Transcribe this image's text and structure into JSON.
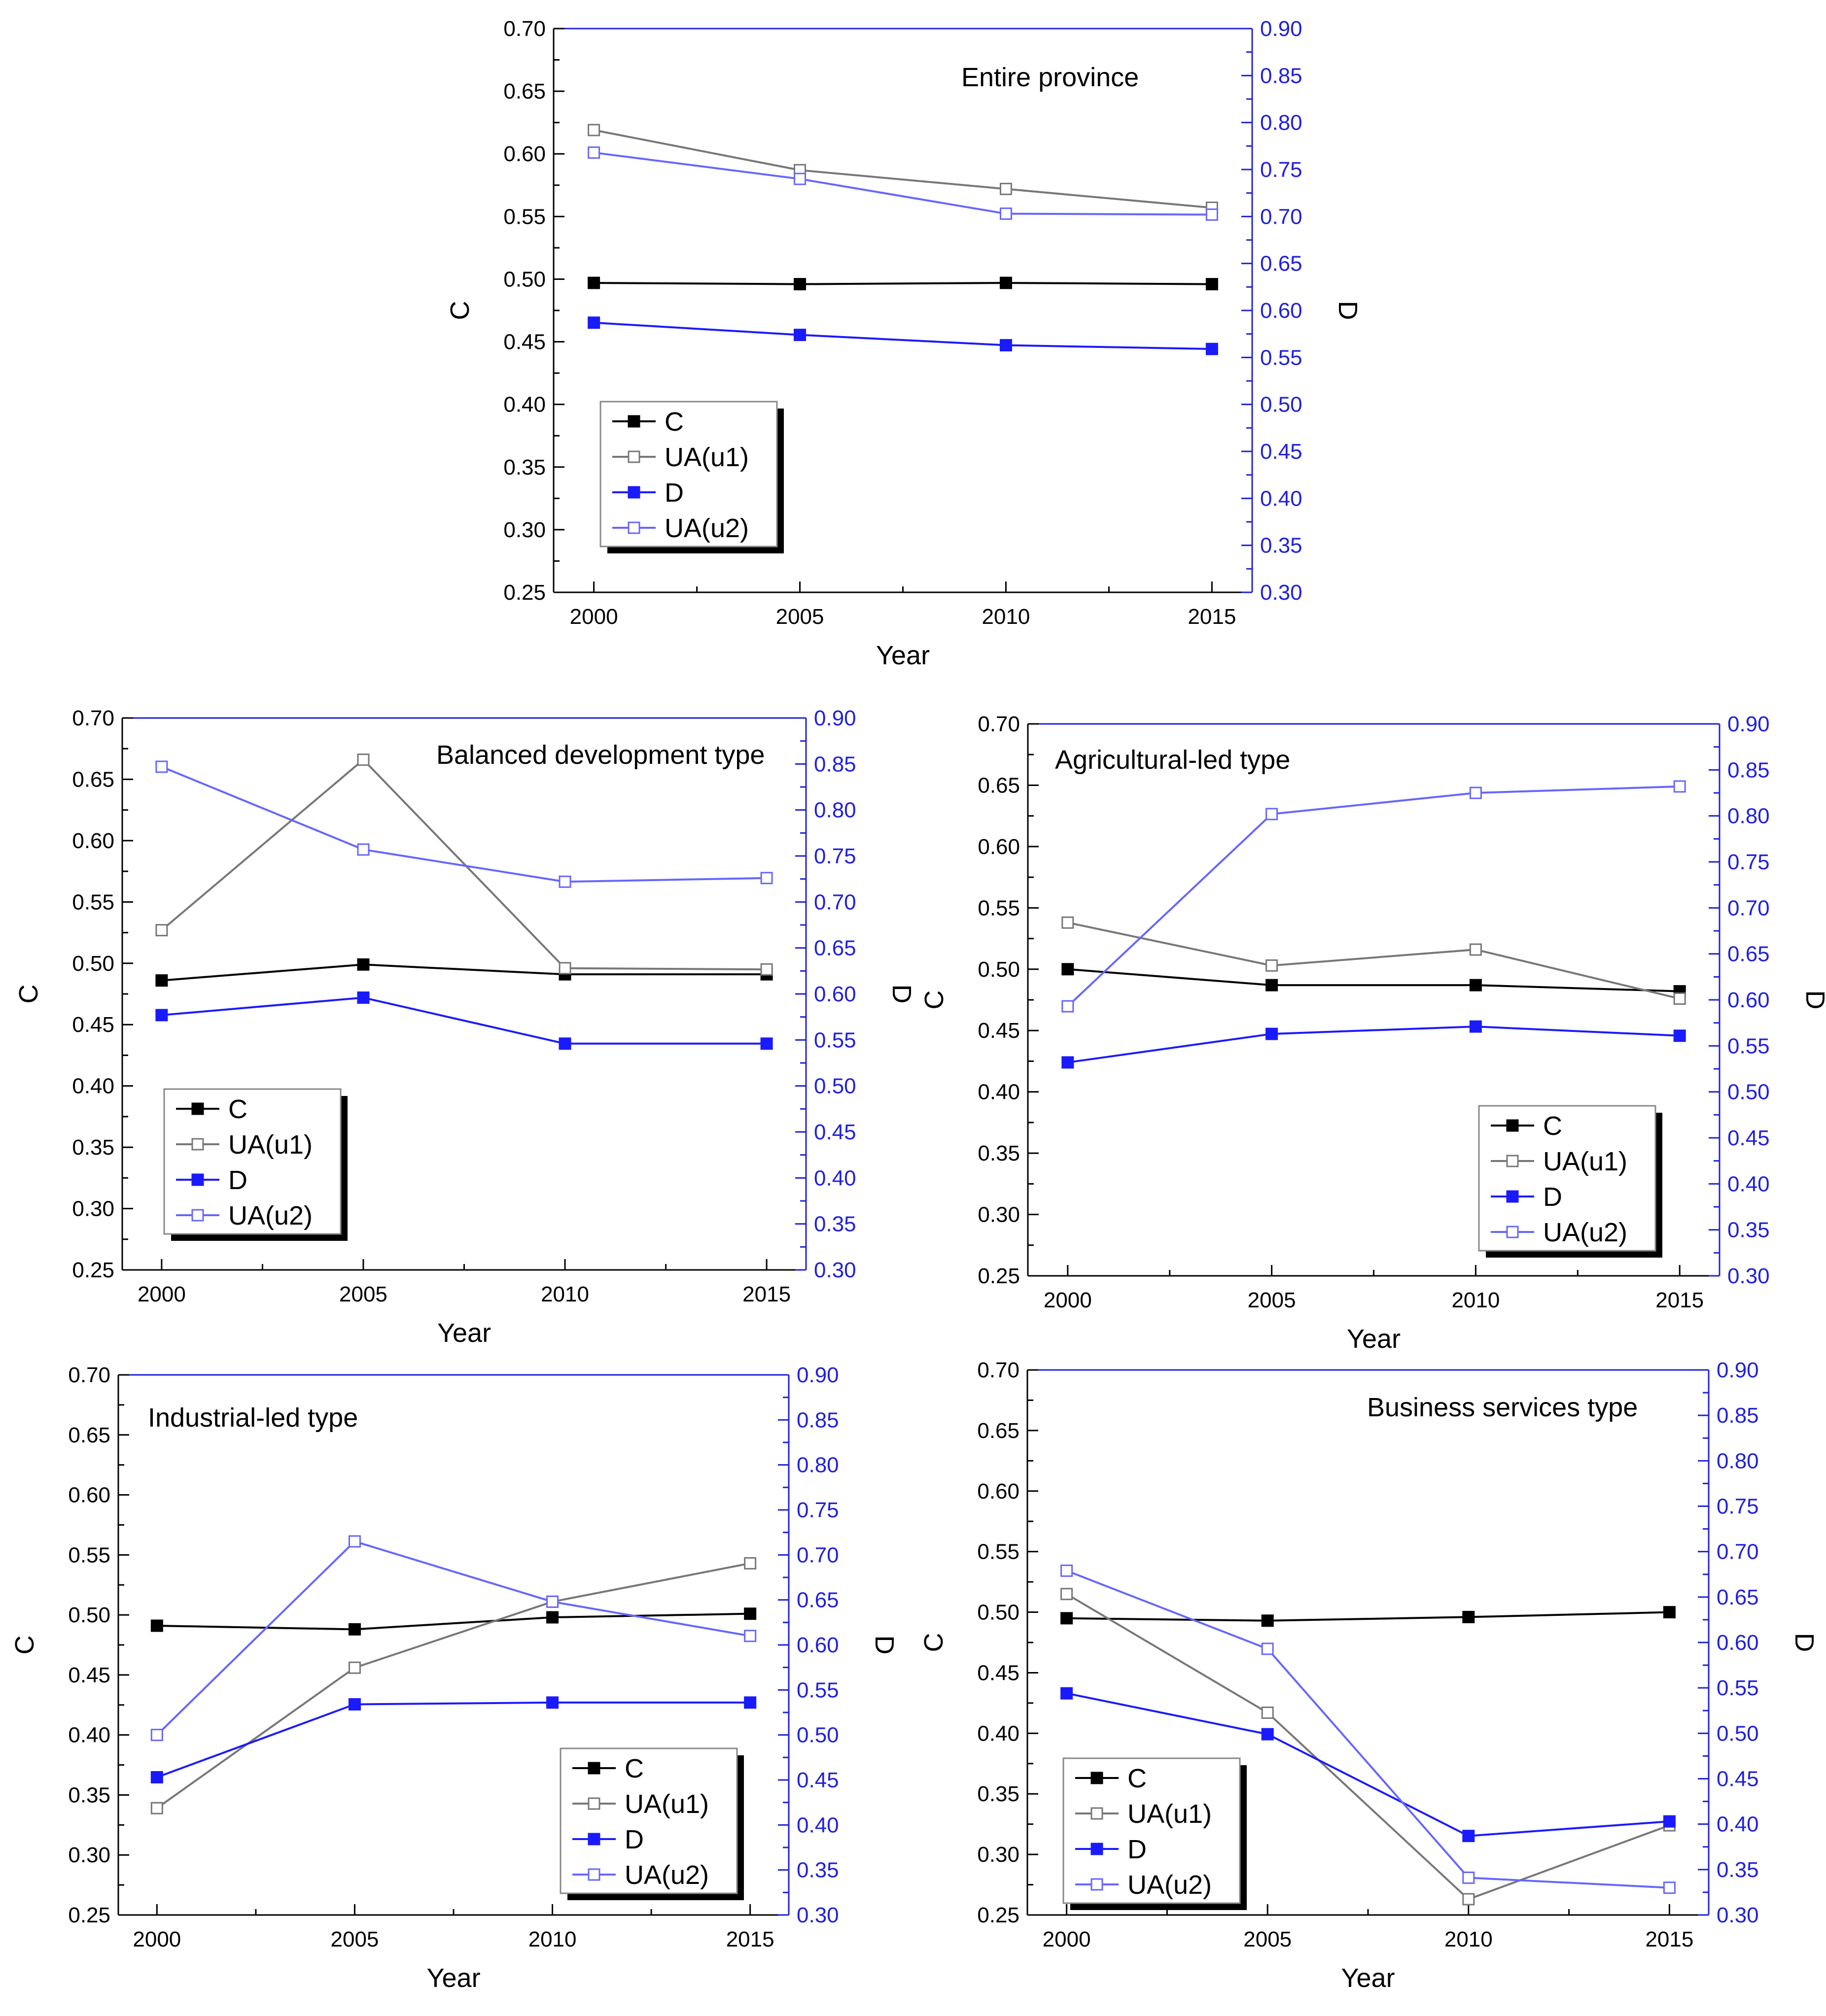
{
  "figure": {
    "colors": {
      "left_axis": "#000000",
      "right_axis": "#2020e0",
      "c_series": "#000000",
      "u1_series": "#777777",
      "d_series": "#1a1aff",
      "u2_series": "#6666ff",
      "background": "#ffffff"
    }
  },
  "chart_data": [
    {
      "type": "line",
      "title": "Entire province",
      "xlabel": "Year",
      "ylabel": "C",
      "y2label": "D",
      "x": [
        "2000",
        "2005",
        "2010",
        "2015"
      ],
      "ylim": [
        0.25,
        0.7
      ],
      "y2lim": [
        0.3,
        0.9
      ],
      "yticks": [
        "0.25",
        "0.30",
        "0.35",
        "0.40",
        "0.45",
        "0.50",
        "0.55",
        "0.60",
        "0.65",
        "0.70"
      ],
      "y2ticks": [
        "0.30",
        "0.35",
        "0.40",
        "0.45",
        "0.50",
        "0.55",
        "0.60",
        "0.65",
        "0.70",
        "0.75",
        "0.80",
        "0.85",
        "0.90"
      ],
      "legend": "bottom-left",
      "series": [
        {
          "name": "C",
          "axis": "left",
          "values": [
            0.497,
            0.496,
            0.497,
            0.496
          ]
        },
        {
          "name": "UA(u1)",
          "axis": "left",
          "values": [
            0.619,
            0.587,
            0.572,
            0.557
          ]
        },
        {
          "name": "D",
          "axis": "right",
          "values": [
            0.587,
            0.574,
            0.563,
            0.559
          ]
        },
        {
          "name": "UA(u2)",
          "axis": "right",
          "values": [
            0.768,
            0.74,
            0.703,
            0.702
          ]
        }
      ]
    },
    {
      "type": "line",
      "title": "Balanced development type",
      "xlabel": "Year",
      "ylabel": "C",
      "y2label": "D",
      "x": [
        "2000",
        "2005",
        "2010",
        "2015"
      ],
      "ylim": [
        0.25,
        0.7
      ],
      "y2lim": [
        0.3,
        0.9
      ],
      "yticks": [
        "0.25",
        "0.30",
        "0.35",
        "0.40",
        "0.45",
        "0.50",
        "0.55",
        "0.60",
        "0.65",
        "0.70"
      ],
      "y2ticks": [
        "0.30",
        "0.35",
        "0.40",
        "0.45",
        "0.50",
        "0.55",
        "0.60",
        "0.65",
        "0.70",
        "0.75",
        "0.80",
        "0.85",
        "0.90"
      ],
      "legend": "bottom-left",
      "series": [
        {
          "name": "C",
          "axis": "left",
          "values": [
            0.486,
            0.499,
            0.491,
            0.491
          ]
        },
        {
          "name": "UA(u1)",
          "axis": "left",
          "values": [
            0.527,
            0.666,
            0.496,
            0.495
          ]
        },
        {
          "name": "D",
          "axis": "right",
          "values": [
            0.577,
            0.596,
            0.546,
            0.546
          ]
        },
        {
          "name": "UA(u2)",
          "axis": "right",
          "values": [
            0.847,
            0.757,
            0.722,
            0.726
          ]
        }
      ]
    },
    {
      "type": "line",
      "title": "Agricultural-led type",
      "xlabel": "Year",
      "ylabel": "C",
      "y2label": "D",
      "x": [
        "2000",
        "2005",
        "2010",
        "2015"
      ],
      "ylim": [
        0.25,
        0.7
      ],
      "y2lim": [
        0.3,
        0.9
      ],
      "yticks": [
        "0.25",
        "0.30",
        "0.35",
        "0.40",
        "0.45",
        "0.50",
        "0.55",
        "0.60",
        "0.65",
        "0.70"
      ],
      "y2ticks": [
        "0.30",
        "0.35",
        "0.40",
        "0.45",
        "0.50",
        "0.55",
        "0.60",
        "0.65",
        "0.70",
        "0.75",
        "0.80",
        "0.85",
        "0.90"
      ],
      "legend": "bottom-right",
      "series": [
        {
          "name": "C",
          "axis": "left",
          "values": [
            0.5,
            0.487,
            0.487,
            0.482
          ]
        },
        {
          "name": "UA(u1)",
          "axis": "left",
          "values": [
            0.538,
            0.503,
            0.516,
            0.476
          ]
        },
        {
          "name": "D",
          "axis": "right",
          "values": [
            0.532,
            0.563,
            0.571,
            0.561
          ]
        },
        {
          "name": "UA(u2)",
          "axis": "right",
          "values": [
            0.593,
            0.802,
            0.825,
            0.832
          ]
        }
      ]
    },
    {
      "type": "line",
      "title": "Industrial-led type",
      "xlabel": "Year",
      "ylabel": "C",
      "y2label": "D",
      "x": [
        "2000",
        "2005",
        "2010",
        "2015"
      ],
      "ylim": [
        0.25,
        0.7
      ],
      "y2lim": [
        0.3,
        0.9
      ],
      "yticks": [
        "0.25",
        "0.30",
        "0.35",
        "0.40",
        "0.45",
        "0.50",
        "0.55",
        "0.60",
        "0.65",
        "0.70"
      ],
      "y2ticks": [
        "0.30",
        "0.35",
        "0.40",
        "0.45",
        "0.50",
        "0.55",
        "0.60",
        "0.65",
        "0.70",
        "0.75",
        "0.80",
        "0.85",
        "0.90"
      ],
      "legend": "bottom-right",
      "series": [
        {
          "name": "C",
          "axis": "left",
          "values": [
            0.491,
            0.488,
            0.498,
            0.501
          ]
        },
        {
          "name": "UA(u1)",
          "axis": "left",
          "values": [
            0.339,
            0.456,
            0.511,
            0.543
          ]
        },
        {
          "name": "D",
          "axis": "right",
          "values": [
            0.453,
            0.534,
            0.536,
            0.536
          ]
        },
        {
          "name": "UA(u2)",
          "axis": "right",
          "values": [
            0.5,
            0.715,
            0.648,
            0.61
          ]
        }
      ]
    },
    {
      "type": "line",
      "title": "Business services type",
      "xlabel": "Year",
      "ylabel": "C",
      "y2label": "D",
      "x": [
        "2000",
        "2005",
        "2010",
        "2015"
      ],
      "ylim": [
        0.25,
        0.7
      ],
      "y2lim": [
        0.3,
        0.9
      ],
      "yticks": [
        "0.25",
        "0.30",
        "0.35",
        "0.40",
        "0.45",
        "0.50",
        "0.55",
        "0.60",
        "0.65",
        "0.70"
      ],
      "y2ticks": [
        "0.30",
        "0.35",
        "0.40",
        "0.45",
        "0.50",
        "0.55",
        "0.60",
        "0.65",
        "0.70",
        "0.75",
        "0.80",
        "0.85",
        "0.90"
      ],
      "legend": "bottom-left",
      "series": [
        {
          "name": "C",
          "axis": "left",
          "values": [
            0.495,
            0.493,
            0.496,
            0.5
          ]
        },
        {
          "name": "UA(u1)",
          "axis": "left",
          "values": [
            0.515,
            0.417,
            0.263,
            0.324
          ]
        },
        {
          "name": "D",
          "axis": "right",
          "values": [
            0.544,
            0.499,
            0.387,
            0.403
          ]
        },
        {
          "name": "UA(u2)",
          "axis": "right",
          "values": [
            0.679,
            0.593,
            0.341,
            0.33
          ]
        }
      ]
    }
  ]
}
